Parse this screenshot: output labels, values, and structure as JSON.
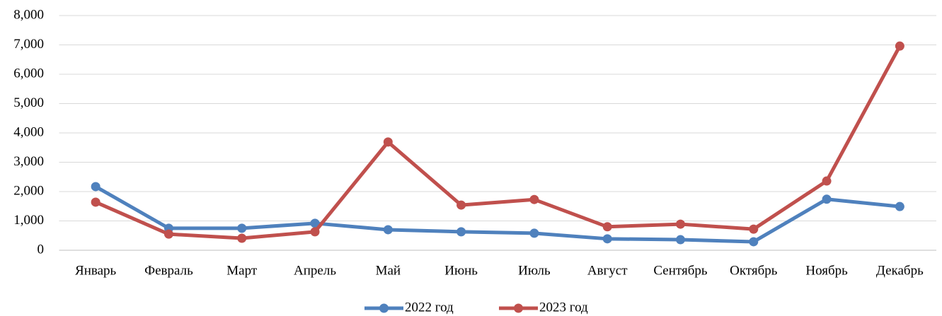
{
  "chart_data": {
    "type": "line",
    "categories": [
      "Январь",
      "Февраль",
      "Март",
      "Апрель",
      "Май",
      "Июнь",
      "Июль",
      "Август",
      "Сентябрь",
      "Октябрь",
      "Ноябрь",
      "Декабрь"
    ],
    "series": [
      {
        "name": "2022 год",
        "color": "#4f81bd",
        "values": [
          2170,
          750,
          750,
          920,
          700,
          630,
          580,
          390,
          360,
          290,
          1740,
          1490
        ]
      },
      {
        "name": "2023 год",
        "color": "#c0504d",
        "values": [
          1640,
          550,
          410,
          630,
          3690,
          1540,
          1730,
          800,
          890,
          720,
          2360,
          6960
        ]
      }
    ],
    "ylim": [
      0,
      8000
    ],
    "yticks": [
      0,
      {
        "value": 1000,
        "label": "1,000"
      },
      {
        "value": 2000,
        "label": "2,000"
      },
      {
        "value": 3000,
        "label": "3,000"
      },
      {
        "value": 4000,
        "label": "4,000"
      },
      {
        "value": 5000,
        "label": "5,000"
      },
      {
        "value": 6000,
        "label": "6,000"
      },
      {
        "value": 7000,
        "label": "7,000"
      },
      {
        "value": 8000,
        "label": "8,000"
      }
    ],
    "grid": true,
    "legend": "bottom"
  }
}
